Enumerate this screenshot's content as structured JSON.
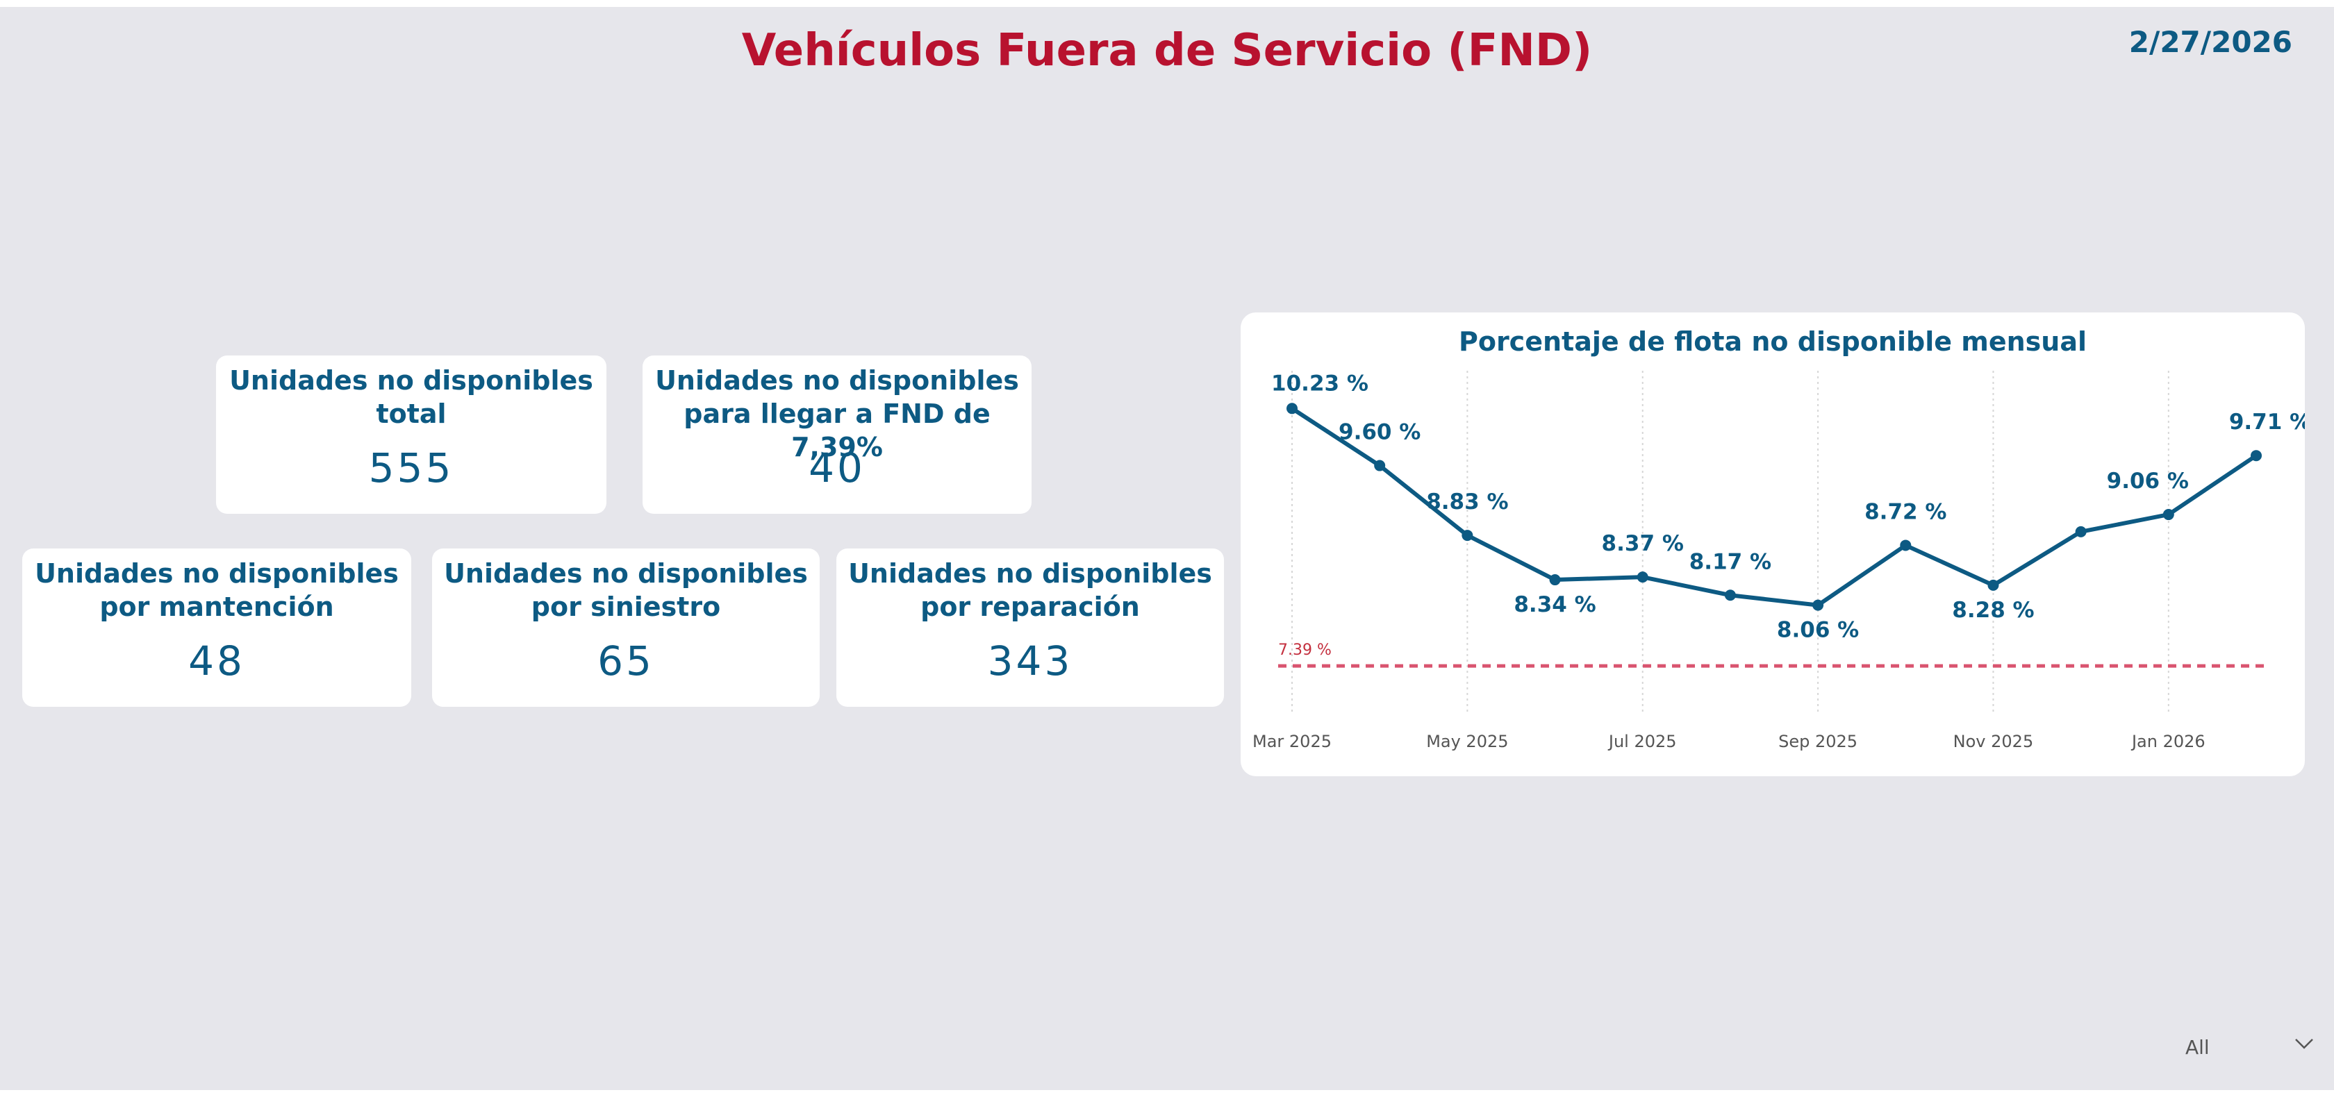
{
  "header": {
    "title": "Vehículos Fuera de Servicio (FND)",
    "date": "2/27/2026"
  },
  "kpis": {
    "total": {
      "label": "Unidades no disponibles\ntotal",
      "value": "555"
    },
    "target": {
      "label": "Unidades no disponibles\npara llegar a FND de 7,39%",
      "value": "40"
    },
    "maintenance": {
      "label": "Unidades no disponibles\npor mantención",
      "value": "48"
    },
    "accident": {
      "label": "Unidades no disponibles\npor siniestro",
      "value": "65"
    },
    "repair": {
      "label": "Unidades no disponibles\npor reparación",
      "value": "343"
    }
  },
  "chart_data": {
    "type": "line",
    "title": "Porcentaje de flota no disponible mensual",
    "x": [
      "Mar 2025",
      "Apr 2025",
      "May 2025",
      "Jun 2025",
      "Jul 2025",
      "Aug 2025",
      "Sep 2025",
      "Oct 2025",
      "Nov 2025",
      "Dec 2025",
      "Jan 2026",
      "Feb 2026"
    ],
    "values": [
      10.23,
      9.6,
      8.83,
      8.34,
      8.37,
      8.17,
      8.06,
      8.72,
      8.28,
      8.87,
      9.06,
      9.71
    ],
    "labels": [
      "10.23 %",
      "9.60 %",
      "8.83 %",
      "8.34 %",
      "8.37 %",
      "8.17 %",
      "8.06 %",
      "8.72 %",
      "8.28 %",
      "",
      "9.06 %",
      "9.71 %"
    ],
    "x_ticks": [
      "Mar 2025",
      "May 2025",
      "Jul 2025",
      "Sep 2025",
      "Nov 2025",
      "Jan 2026"
    ],
    "reference_line": {
      "value": 7.39,
      "label": "7.39 %",
      "color": "#d9546f"
    },
    "ylim": [
      7.0,
      10.6
    ],
    "series_color": "#0d5a83",
    "grid": "vertical-dotted"
  },
  "slicer": {
    "value": "All",
    "icon": "chevron-down-icon"
  },
  "colors": {
    "title": "#b8122f",
    "accent": "#0d5a83",
    "background": "#e6e6eb",
    "card": "#ffffff"
  }
}
